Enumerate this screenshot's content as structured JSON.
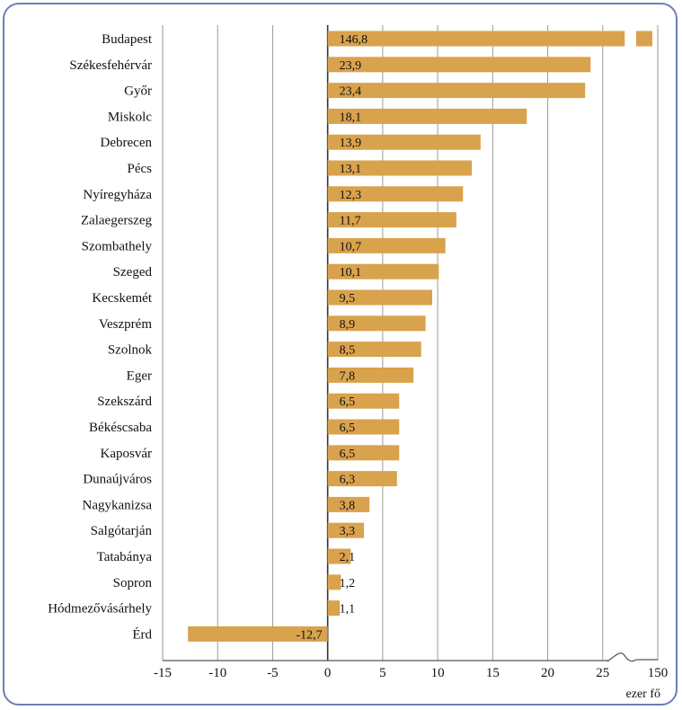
{
  "colors": {
    "bar": "#d9a24d",
    "grid": "#9a9a9a",
    "frame": "#6b7fb3",
    "text": "#111111"
  },
  "chart_data": {
    "type": "bar",
    "orientation": "horizontal",
    "categories": [
      "Budapest",
      "Székesfehérvár",
      "Győr",
      "Miskolc",
      "Debrecen",
      "Pécs",
      "Nyíregyháza",
      "Zalaegerszeg",
      "Szombathely",
      "Szeged",
      "Kecskemét",
      "Veszprém",
      "Szolnok",
      "Eger",
      "Szekszárd",
      "Békéscsaba",
      "Kaposvár",
      "Dunaújváros",
      "Nagykanizsa",
      "Salgótarján",
      "Tatabánya",
      "Sopron",
      "Hódmezővásárhely",
      "Érd"
    ],
    "values": [
      146.8,
      23.9,
      23.4,
      18.1,
      13.9,
      13.1,
      12.3,
      11.7,
      10.7,
      10.1,
      9.5,
      8.9,
      8.5,
      7.8,
      6.5,
      6.5,
      6.5,
      6.3,
      3.8,
      3.3,
      2.1,
      1.2,
      1.1,
      -12.7
    ],
    "value_labels": [
      "146,8",
      "23,9",
      "23,4",
      "18,1",
      "13,9",
      "13,1",
      "12,3",
      "11,7",
      "10,7",
      "10,1",
      "9,5",
      "8,9",
      "8,5",
      "7,8",
      "6,5",
      "6,5",
      "6,5",
      "6,3",
      "3,8",
      "3,3",
      "2,1",
      "1,2",
      "1,1",
      "-12,7"
    ],
    "x_ticks": [
      -15,
      -10,
      -5,
      0,
      5,
      10,
      15,
      20,
      25,
      150
    ],
    "x_tick_labels": [
      "-15",
      "-10",
      "-5",
      "0",
      "5",
      "10",
      "15",
      "20",
      "25",
      "150"
    ],
    "xlim": [
      -15,
      30
    ],
    "axis_break": true,
    "unit_label": "ezer fő",
    "grid": true
  }
}
